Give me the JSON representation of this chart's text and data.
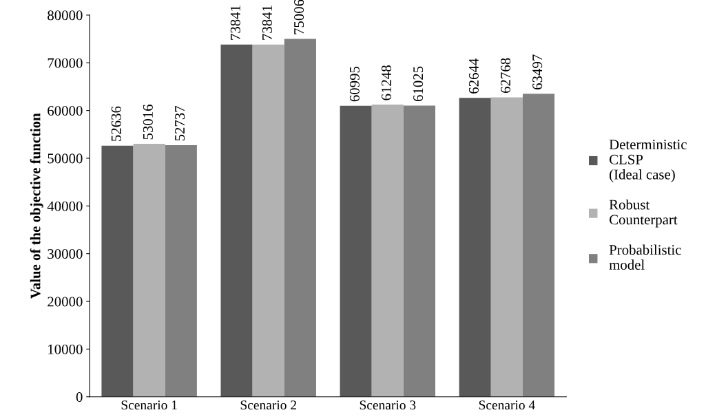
{
  "chart_data": {
    "type": "bar",
    "ylabel": "Value of the objective function",
    "categories": [
      "Scenario 1",
      "Scenario 2",
      "Scenario 3",
      "Scenario 4"
    ],
    "series": [
      {
        "name": "Deterministic\nCLSP\n(Ideal case)",
        "color": "#595959",
        "values": [
          52636,
          73841,
          60995,
          62644
        ]
      },
      {
        "name": "Robust\nCounterpart",
        "color": "#b2b2b2",
        "values": [
          53016,
          73841,
          61248,
          62768
        ]
      },
      {
        "name": "Probabilistic\nmodel",
        "color": "#808080",
        "values": [
          52737,
          75006,
          61025,
          63497
        ]
      }
    ],
    "ylim": [
      0,
      80000
    ],
    "yticks": [
      0,
      10000,
      20000,
      30000,
      40000,
      50000,
      60000,
      70000,
      80000
    ],
    "data_labels": true,
    "grid": false,
    "legend": "right"
  }
}
